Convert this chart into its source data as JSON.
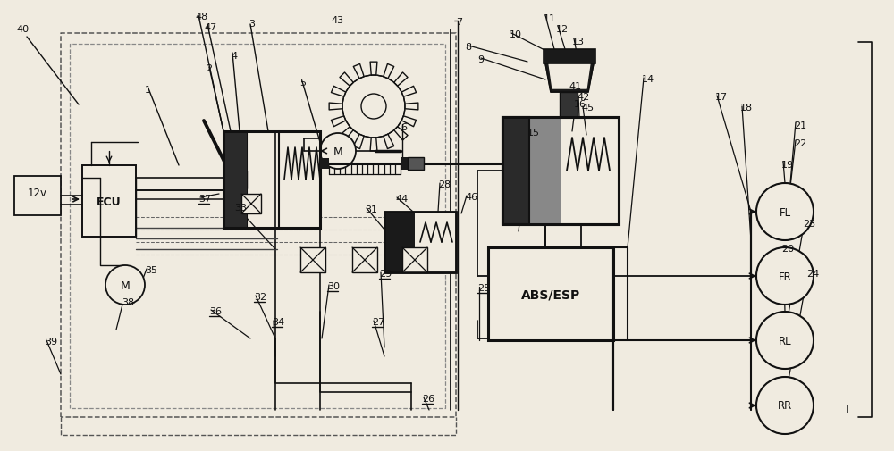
{
  "bg": "#f0ebe0",
  "lc": "#111111",
  "fig_w": 10.0,
  "fig_h": 5.06,
  "dpi": 100,
  "labels_plain": [
    [
      "40",
      18,
      28
    ],
    [
      "48",
      218,
      14
    ],
    [
      "47",
      228,
      26
    ],
    [
      "3",
      278,
      22
    ],
    [
      "43",
      370,
      18
    ],
    [
      "7",
      510,
      20
    ],
    [
      "8",
      520,
      48
    ],
    [
      "9",
      534,
      62
    ],
    [
      "10",
      570,
      34
    ],
    [
      "11",
      608,
      16
    ],
    [
      "12",
      622,
      28
    ],
    [
      "13",
      640,
      42
    ],
    [
      "1",
      162,
      96
    ],
    [
      "2",
      230,
      72
    ],
    [
      "4",
      258,
      58
    ],
    [
      "5",
      335,
      88
    ],
    [
      "6",
      448,
      138
    ],
    [
      "14",
      718,
      84
    ],
    [
      "15",
      590,
      144
    ],
    [
      "16",
      642,
      112
    ],
    [
      "17",
      800,
      104
    ],
    [
      "18",
      828,
      116
    ],
    [
      "19",
      874,
      180
    ],
    [
      "20",
      874,
      274
    ],
    [
      "21",
      888,
      136
    ],
    [
      "22",
      888,
      156
    ],
    [
      "23",
      898,
      246
    ],
    [
      "24",
      902,
      302
    ],
    [
      "28",
      490,
      202
    ],
    [
      "31",
      408,
      230
    ],
    [
      "33",
      262,
      228
    ],
    [
      "35",
      162,
      298
    ],
    [
      "38",
      136,
      334
    ],
    [
      "39",
      50,
      378
    ],
    [
      "41",
      636,
      92
    ],
    [
      "42",
      645,
      104
    ],
    [
      "44",
      442,
      218
    ],
    [
      "45",
      650,
      116
    ],
    [
      "46",
      520,
      216
    ],
    [
      "I",
      946,
      452
    ]
  ],
  "labels_underline": [
    [
      "25",
      534,
      318
    ],
    [
      "26",
      472,
      442
    ],
    [
      "27",
      416,
      356
    ],
    [
      "29",
      424,
      302
    ],
    [
      "30",
      366,
      316
    ],
    [
      "32",
      284,
      328
    ],
    [
      "34",
      304,
      356
    ],
    [
      "36",
      234,
      344
    ],
    [
      "37",
      222,
      218
    ]
  ]
}
